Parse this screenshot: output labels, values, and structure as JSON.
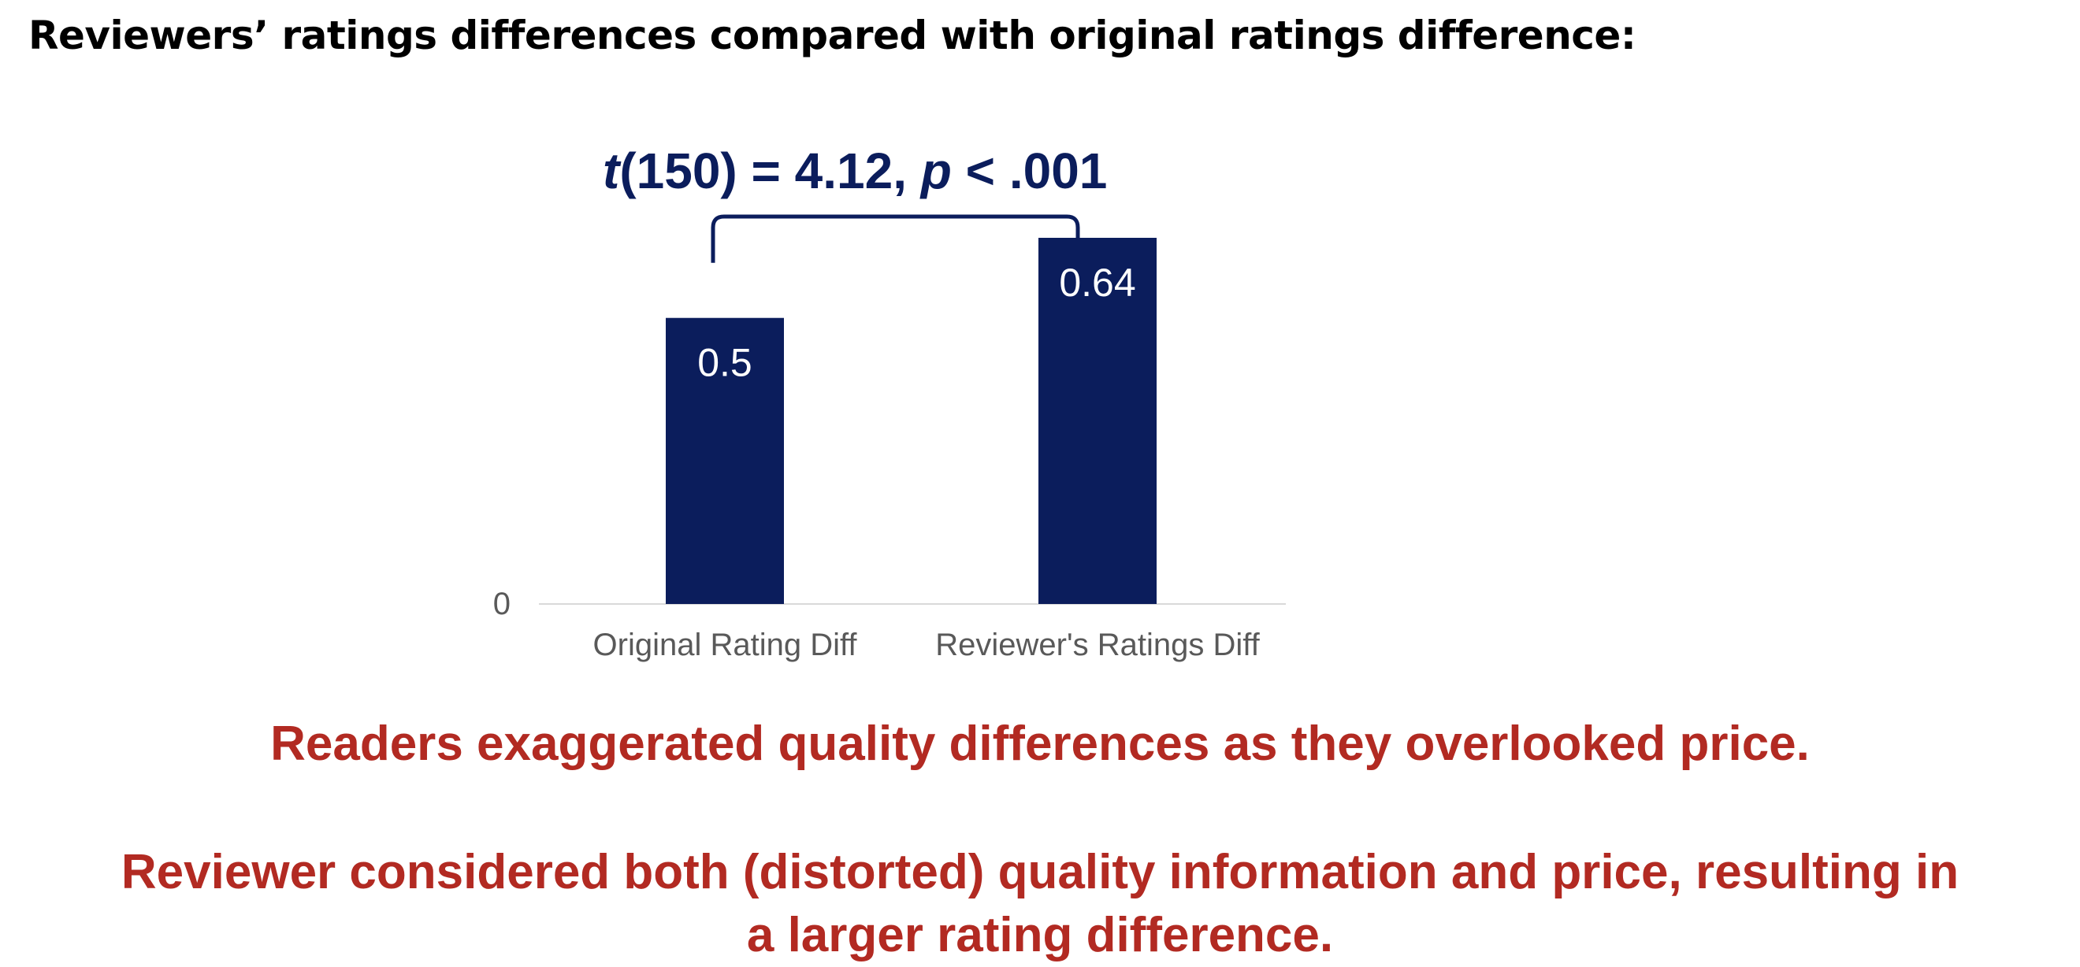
{
  "slide": {
    "title": "Reviewers’ ratings differences compared with original ratings difference:"
  },
  "annotation": {
    "t_symbol": "t",
    "t_df": "(150) = 4.12, ",
    "p_symbol": "p",
    "p_value": " < .001"
  },
  "chart_data": {
    "type": "bar",
    "categories": [
      "Original Rating Diff",
      "Reviewer's Ratings Diff"
    ],
    "values": [
      0.5,
      0.64
    ],
    "data_labels": [
      "0.5",
      "0.64"
    ],
    "y_tick_labels": [
      "0"
    ],
    "ylim": [
      0,
      0.64
    ],
    "grid": false,
    "bar_color": "#0b1d5c",
    "label_color": "#ffffff",
    "axis_color": "#d9d9d9",
    "tick_label_color": "#595959"
  },
  "conclusions": {
    "line1": "Readers exaggerated quality differences as they overlooked price.",
    "line2a": "Reviewer considered both (distorted) quality information and price, resulting in",
    "line2b": "a larger rating difference."
  }
}
